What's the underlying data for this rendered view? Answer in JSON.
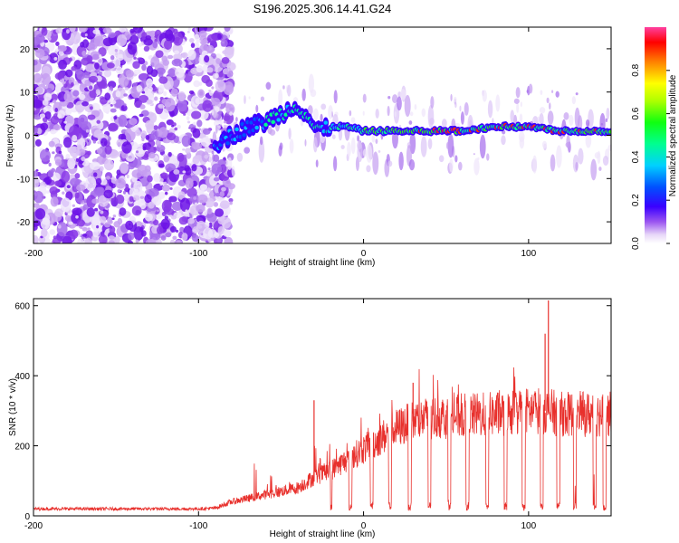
{
  "title": "S196.2025.306.14.41.G24",
  "chart_data": [
    {
      "type": "heatmap",
      "name": "spectrogram",
      "xlabel": "Height of straight line (km)",
      "ylabel": "Frequency (Hz)",
      "xlim": [
        -200,
        150
      ],
      "ylim": [
        -25,
        25
      ],
      "xticks": [
        "-200",
        "-100",
        "0",
        "100"
      ],
      "xtick_values": [
        -200,
        -100,
        0,
        100
      ],
      "yticks": [
        "-20",
        "-10",
        "0",
        "10",
        "20"
      ],
      "ytick_values": [
        -20,
        -10,
        0,
        10,
        20
      ],
      "colorbar": {
        "label": "Normalized spectral amplitude",
        "range": [
          0,
          1
        ],
        "ticks": [
          "0.0",
          "0.2",
          "0.4",
          "0.6",
          "0.8"
        ],
        "tick_values": [
          0.0,
          0.2,
          0.4,
          0.6,
          0.8
        ]
      },
      "ridge": {
        "x": [
          -90,
          -80,
          -70,
          -60,
          -50,
          -45,
          -40,
          -35,
          -30,
          -25,
          -20,
          -10,
          0,
          10,
          20,
          40,
          60,
          80,
          100,
          120,
          150
        ],
        "freq": [
          -2,
          0,
          2,
          3,
          5,
          6,
          7,
          5,
          2,
          1,
          2,
          2,
          1,
          1,
          1,
          1,
          1,
          2,
          2,
          1,
          1
        ]
      },
      "noise_region": {
        "x": [
          -200,
          -88
        ],
        "freq": [
          -25,
          25
        ]
      }
    },
    {
      "type": "line",
      "name": "snr",
      "xlabel": "Height of straight line (km)",
      "ylabel": "SNR (10 * v/v)",
      "xlim": [
        -200,
        150
      ],
      "ylim": [
        0,
        620
      ],
      "xticks": [
        "-200",
        "-100",
        "0",
        "100"
      ],
      "xtick_values": [
        -200,
        -100,
        0,
        100
      ],
      "yticks": [
        "0",
        "200",
        "400",
        "600"
      ],
      "ytick_values": [
        0,
        200,
        400,
        600
      ],
      "color": "#e8302c",
      "envelope": {
        "x": [
          -200,
          -100,
          -90,
          -80,
          -70,
          -60,
          -50,
          -40,
          -30,
          -20,
          -10,
          0,
          10,
          20,
          30,
          40,
          60,
          80,
          100,
          110,
          120,
          150
        ],
        "snr": [
          20,
          20,
          22,
          40,
          50,
          60,
          70,
          80,
          110,
          130,
          160,
          190,
          220,
          250,
          270,
          280,
          285,
          290,
          300,
          300,
          290,
          290
        ]
      },
      "peaks": [
        {
          "x": 112,
          "snr": 615
        },
        {
          "x": 110,
          "snr": 520
        },
        {
          "x": -30,
          "snr": 330
        },
        {
          "x": 30,
          "snr": 380
        }
      ],
      "dropouts_x": [
        -20,
        -8,
        5,
        16,
        28,
        40,
        52,
        63,
        75,
        86,
        97,
        108,
        118,
        128,
        140,
        146
      ]
    }
  ]
}
